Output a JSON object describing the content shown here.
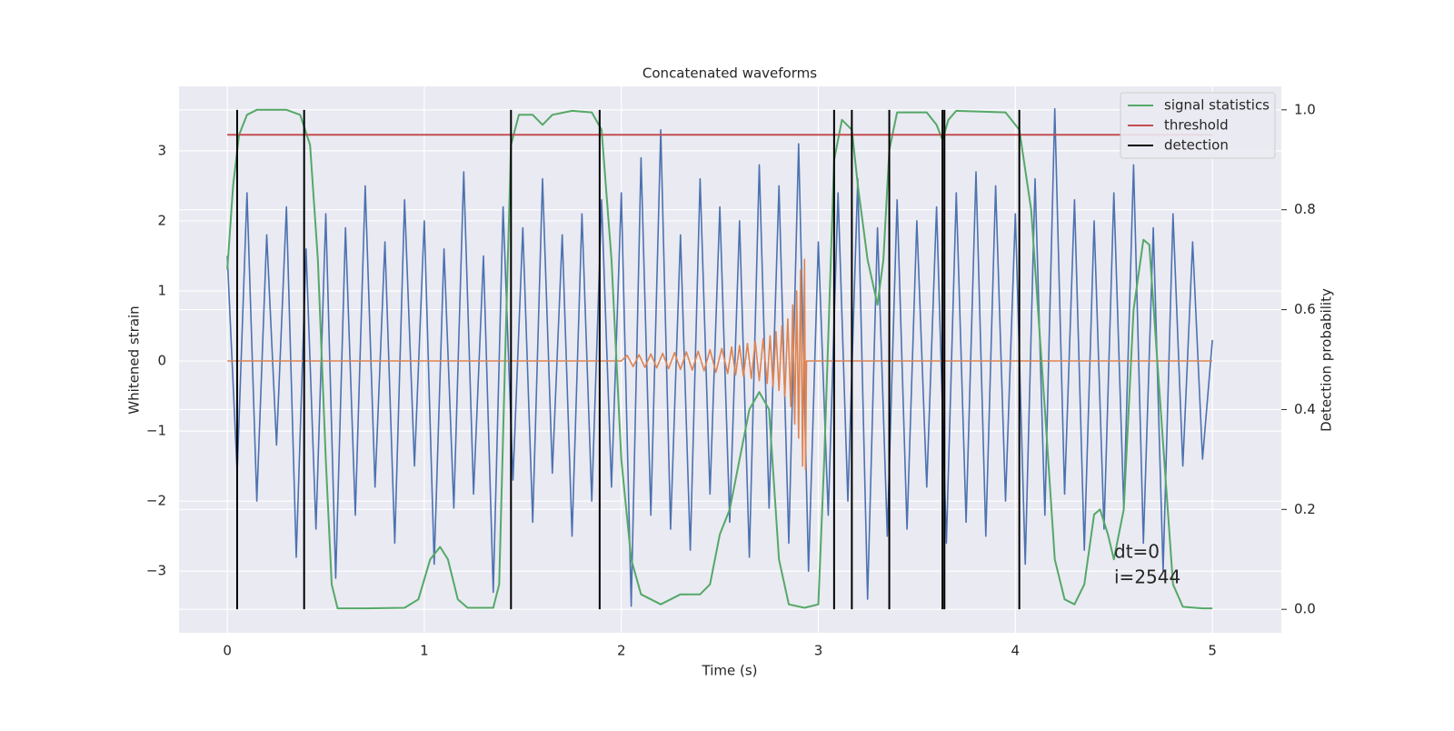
{
  "chart_data": {
    "type": "line",
    "title": "Concatenated waveforms",
    "x_label": "Time (s)",
    "y_label": "Whitened strain",
    "y2_label": "Detection probability",
    "xlim": [
      -0.245,
      5.35
    ],
    "ylim": [
      -3.88,
      3.92
    ],
    "y2lim": [
      -0.047,
      1.047
    ],
    "xticks": [
      0,
      1,
      2,
      3,
      4,
      5
    ],
    "yticks": [
      {
        "value": -3,
        "label": "−3"
      },
      {
        "value": -2,
        "label": "−2"
      },
      {
        "value": -1,
        "label": "−1"
      },
      0,
      1,
      2,
      3
    ],
    "y2ticks": [
      {
        "value": 0,
        "label": "0.0"
      },
      0.2,
      0.4,
      0.6,
      0.8,
      {
        "value": 1,
        "label": "1.0"
      }
    ],
    "grid": true,
    "legend": "upper right",
    "annotations": [
      "dt=0",
      "i=2544"
    ],
    "series": [
      {
        "color": "#4c72b0",
        "axis": "y",
        "x": [
          0,
          0.05,
          0.1,
          0.15,
          0.2,
          0.25,
          0.3,
          0.35,
          0.4,
          0.45,
          0.5,
          0.55,
          0.6,
          0.65,
          0.7,
          0.75,
          0.8,
          0.85,
          0.9,
          0.95,
          1,
          1.05,
          1.1,
          1.15,
          1.2,
          1.25,
          1.3,
          1.35,
          1.4,
          1.45,
          1.5,
          1.55,
          1.6,
          1.65,
          1.7,
          1.75,
          1.8,
          1.85,
          1.9,
          1.95,
          2,
          2.05,
          2.1,
          2.15,
          2.2,
          2.25,
          2.3,
          2.35,
          2.4,
          2.45,
          2.5,
          2.55,
          2.6,
          2.65,
          2.7,
          2.75,
          2.8,
          2.85,
          2.9,
          2.95,
          3,
          3.05,
          3.1,
          3.15,
          3.2,
          3.25,
          3.3,
          3.35,
          3.4,
          3.45,
          3.5,
          3.55,
          3.6,
          3.65,
          3.7,
          3.75,
          3.8,
          3.85,
          3.9,
          3.95,
          4,
          4.05,
          4.1,
          4.15,
          4.2,
          4.25,
          4.3,
          4.35,
          4.4,
          4.45,
          4.5,
          4.55,
          4.6,
          4.65,
          4.7,
          4.75,
          4.8,
          4.85,
          4.9,
          4.95,
          5
        ],
        "values": [
          1.5,
          -1.6,
          2.4,
          -2.0,
          1.8,
          -1.2,
          2.2,
          -2.8,
          1.6,
          -2.4,
          2.1,
          -3.1,
          1.9,
          -2.2,
          2.5,
          -1.8,
          1.7,
          -2.6,
          2.3,
          -1.5,
          2.0,
          -2.9,
          1.6,
          -2.1,
          2.7,
          -1.9,
          1.5,
          -3.3,
          2.2,
          -1.7,
          1.9,
          -2.3,
          2.6,
          -1.6,
          1.8,
          -2.5,
          2.1,
          -2.0,
          2.3,
          -1.8,
          2.4,
          -3.5,
          2.9,
          -2.2,
          3.3,
          -2.4,
          1.8,
          -2.7,
          2.6,
          -1.9,
          2.2,
          -2.3,
          2.0,
          -2.8,
          2.8,
          -2.1,
          2.5,
          -2.6,
          3.1,
          -3.0,
          1.7,
          -2.2,
          2.4,
          -2.0,
          2.6,
          -3.4,
          1.9,
          -2.5,
          2.3,
          -2.4,
          2.0,
          -1.8,
          2.2,
          -2.6,
          2.4,
          -2.3,
          2.7,
          -2.5,
          2.5,
          -2.0,
          2.1,
          -2.9,
          2.6,
          -2.2,
          3.6,
          -1.9,
          2.3,
          -2.7,
          2.0,
          -2.4,
          2.4,
          -2.1,
          2.8,
          -2.6,
          1.9,
          -3.0,
          2.1,
          -1.5,
          1.7,
          -1.4,
          0.3
        ]
      },
      {
        "color": "#dd8452",
        "axis": "y",
        "x": [
          0,
          2,
          2.03,
          2.06,
          2.09,
          2.12,
          2.15,
          2.18,
          2.21,
          2.24,
          2.27,
          2.3,
          2.33,
          2.36,
          2.39,
          2.42,
          2.45,
          2.48,
          2.51,
          2.54,
          2.56,
          2.58,
          2.6,
          2.62,
          2.64,
          2.66,
          2.68,
          2.7,
          2.72,
          2.74,
          2.755,
          2.77,
          2.785,
          2.8,
          2.815,
          2.83,
          2.845,
          2.86,
          2.87,
          2.88,
          2.89,
          2.9,
          2.91,
          2.92,
          2.93,
          2.935,
          2.94,
          5
        ],
        "values": [
          0,
          0,
          0.08,
          -0.08,
          0.09,
          -0.09,
          0.1,
          -0.1,
          0.11,
          -0.11,
          0.12,
          -0.12,
          0.13,
          -0.13,
          0.14,
          -0.14,
          0.16,
          -0.16,
          0.18,
          -0.18,
          0.2,
          -0.2,
          0.22,
          -0.22,
          0.25,
          -0.25,
          0.28,
          -0.28,
          0.32,
          -0.32,
          0.36,
          -0.36,
          0.42,
          -0.42,
          0.5,
          -0.5,
          0.6,
          -0.65,
          0.8,
          -0.9,
          1.0,
          -1.1,
          1.3,
          -1.5,
          1.45,
          -1.55,
          0,
          0
        ]
      },
      {
        "name": "signal statistics",
        "color": "#55a868",
        "axis": "y2",
        "x": [
          0,
          0.03,
          0.06,
          0.1,
          0.15,
          0.3,
          0.37,
          0.42,
          0.46,
          0.5,
          0.53,
          0.56,
          0.7,
          0.9,
          0.97,
          1.03,
          1.08,
          1.12,
          1.17,
          1.22,
          1.35,
          1.38,
          1.41,
          1.44,
          1.48,
          1.55,
          1.6,
          1.65,
          1.75,
          1.85,
          1.9,
          1.95,
          2,
          2.05,
          2.1,
          2.2,
          2.3,
          2.4,
          2.45,
          2.5,
          2.55,
          2.6,
          2.65,
          2.7,
          2.75,
          2.8,
          2.85,
          2.93,
          3,
          3.03,
          3.08,
          3.12,
          3.17,
          3.2,
          3.25,
          3.3,
          3.33,
          3.36,
          3.4,
          3.55,
          3.6,
          3.63,
          3.66,
          3.7,
          3.95,
          4.02,
          4.08,
          4.15,
          4.2,
          4.25,
          4.3,
          4.35,
          4.4,
          4.43,
          4.47,
          4.5,
          4.55,
          4.6,
          4.65,
          4.68,
          4.72,
          4.8,
          4.85,
          4.95,
          5
        ],
        "values": [
          0.68,
          0.85,
          0.95,
          0.99,
          1.0,
          1.0,
          0.99,
          0.93,
          0.7,
          0.3,
          0.05,
          0.002,
          0.002,
          0.003,
          0.02,
          0.1,
          0.125,
          0.1,
          0.02,
          0.003,
          0.003,
          0.05,
          0.5,
          0.93,
          0.99,
          0.99,
          0.97,
          0.99,
          0.998,
          0.995,
          0.96,
          0.7,
          0.3,
          0.1,
          0.03,
          0.01,
          0.03,
          0.03,
          0.05,
          0.15,
          0.2,
          0.3,
          0.4,
          0.435,
          0.4,
          0.1,
          0.01,
          0.003,
          0.01,
          0.3,
          0.9,
          0.98,
          0.96,
          0.85,
          0.7,
          0.61,
          0.7,
          0.92,
          0.995,
          0.995,
          0.97,
          0.94,
          0.98,
          0.998,
          0.995,
          0.96,
          0.8,
          0.4,
          0.1,
          0.02,
          0.01,
          0.05,
          0.19,
          0.2,
          0.15,
          0.1,
          0.2,
          0.6,
          0.74,
          0.73,
          0.5,
          0.05,
          0.005,
          0.002,
          0.002
        ]
      },
      {
        "name": "threshold",
        "color": "#c44e52",
        "axis": "y2",
        "x": [
          0,
          5
        ],
        "values": [
          0.95,
          0.95
        ]
      },
      {
        "name": "detection",
        "color": "#000000",
        "axis": "y2",
        "x": [
          0.05,
          0.39,
          1.44,
          1.89,
          3.08,
          3.17,
          3.36,
          3.63,
          3.64,
          4.02
        ]
      }
    ]
  }
}
